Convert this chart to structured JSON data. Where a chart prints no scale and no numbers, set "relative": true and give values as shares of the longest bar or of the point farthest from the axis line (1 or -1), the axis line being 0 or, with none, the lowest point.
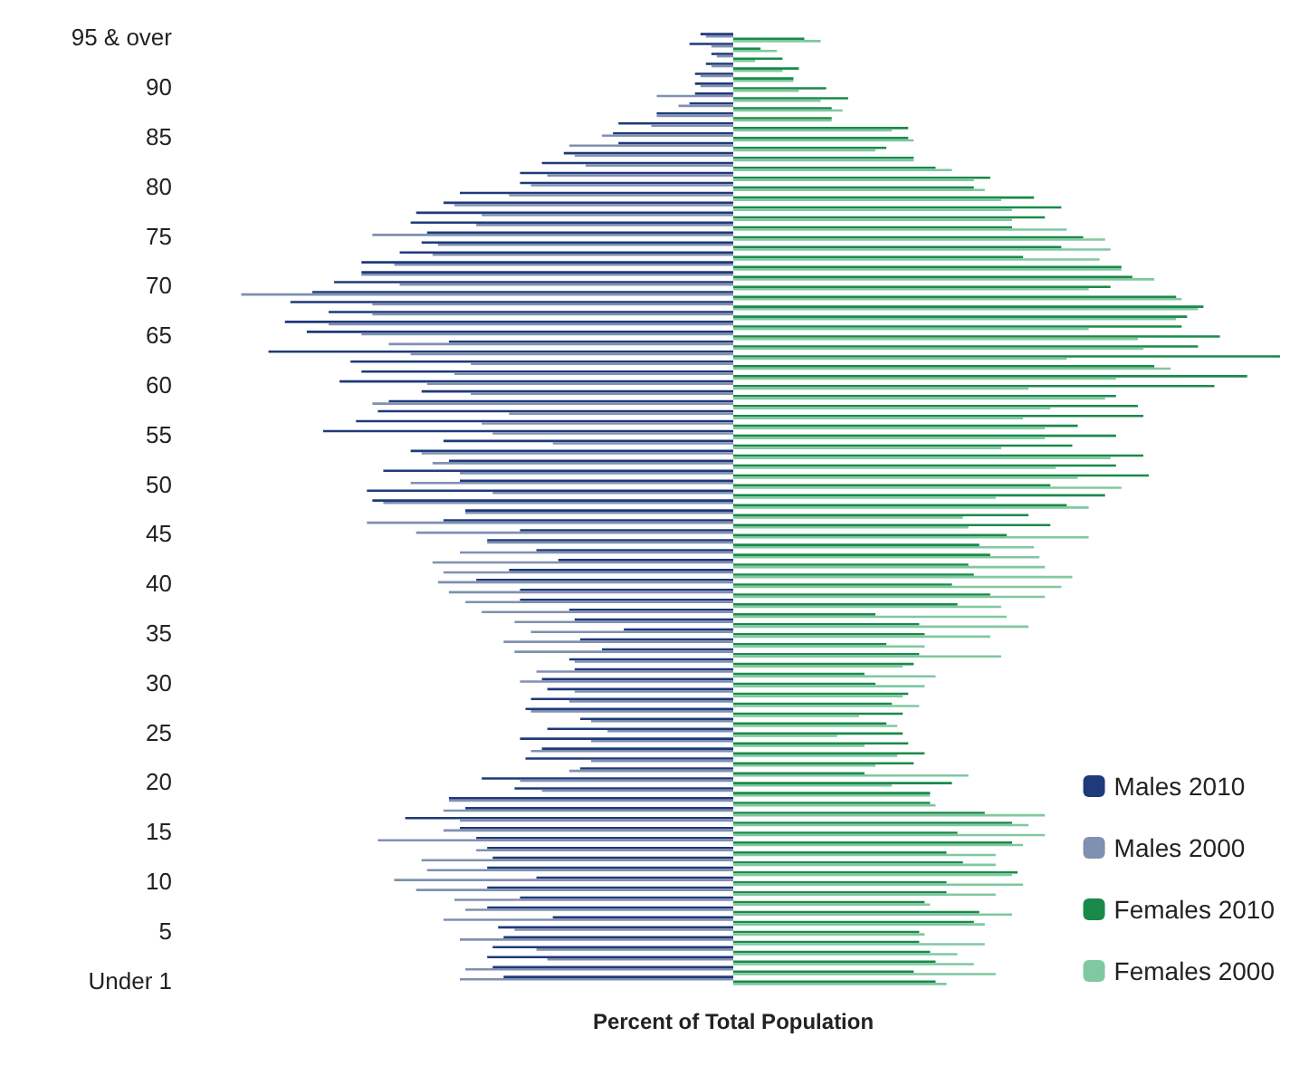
{
  "chart_data": {
    "type": "bar",
    "orientation": "horizontal",
    "relative": true,
    "xlabel": "Percent of Total Population",
    "legend": "bottom right",
    "grid": false,
    "categories": [
      "95 & over",
      null,
      null,
      null,
      null,
      "90",
      null,
      null,
      null,
      null,
      "85",
      null,
      null,
      null,
      null,
      "80",
      null,
      null,
      null,
      null,
      "75",
      null,
      null,
      null,
      null,
      "70",
      null,
      null,
      null,
      null,
      "65",
      null,
      null,
      null,
      null,
      "60",
      null,
      null,
      null,
      null,
      "55",
      null,
      null,
      null,
      null,
      "50",
      null,
      null,
      null,
      null,
      "45",
      null,
      null,
      null,
      null,
      "40",
      null,
      null,
      null,
      null,
      "35",
      null,
      null,
      null,
      null,
      "30",
      null,
      null,
      null,
      null,
      "25",
      null,
      null,
      null,
      null,
      "20",
      null,
      null,
      null,
      null,
      "15",
      null,
      null,
      null,
      null,
      "10",
      null,
      null,
      null,
      null,
      "5",
      null,
      null,
      null,
      null,
      "Under 1"
    ],
    "series": [
      {
        "name": "Males 2010",
        "color": "#1f3a7a",
        "values": [
          -0.06,
          -0.08,
          -0.04,
          -0.05,
          -0.07,
          -0.07,
          -0.07,
          -0.08,
          -0.14,
          -0.21,
          -0.22,
          -0.21,
          -0.31,
          -0.35,
          -0.39,
          -0.39,
          -0.5,
          -0.53,
          -0.58,
          -0.59,
          -0.56,
          -0.57,
          -0.61,
          -0.68,
          -0.68,
          -0.73,
          -0.77,
          -0.81,
          -0.74,
          -0.82,
          -0.78,
          -0.52,
          -0.85,
          -0.7,
          -0.68,
          -0.72,
          -0.57,
          -0.63,
          -0.65,
          -0.69,
          -0.75,
          -0.53,
          -0.59,
          -0.52,
          -0.64,
          -0.5,
          -0.67,
          -0.66,
          -0.49,
          -0.53,
          -0.39,
          -0.45,
          -0.36,
          -0.32,
          -0.41,
          -0.47,
          -0.39,
          -0.39,
          -0.3,
          -0.29,
          -0.2,
          -0.28,
          -0.24,
          -0.3,
          -0.29,
          -0.35,
          -0.34,
          -0.37,
          -0.38,
          -0.28,
          -0.34,
          -0.39,
          -0.35,
          -0.38,
          -0.28,
          -0.46,
          -0.4,
          -0.52,
          -0.49,
          -0.6,
          -0.5,
          -0.47,
          -0.45,
          -0.44,
          -0.45,
          -0.36,
          -0.45,
          -0.39,
          -0.45,
          -0.33,
          -0.43,
          -0.42,
          -0.44,
          -0.45,
          -0.44,
          -0.42
        ]
      },
      {
        "name": "Males 2000",
        "color": "#8090b0",
        "values": [
          -0.05,
          -0.04,
          -0.03,
          -0.04,
          -0.06,
          -0.06,
          -0.14,
          -0.1,
          -0.14,
          -0.15,
          -0.24,
          -0.3,
          -0.29,
          -0.27,
          -0.34,
          -0.37,
          -0.41,
          -0.51,
          -0.46,
          -0.47,
          -0.66,
          -0.54,
          -0.55,
          -0.62,
          -0.68,
          -0.61,
          -0.9,
          -0.66,
          -0.66,
          -0.74,
          -0.68,
          -0.63,
          -0.59,
          -0.48,
          -0.51,
          -0.56,
          -0.48,
          -0.66,
          -0.41,
          -0.46,
          -0.44,
          -0.33,
          -0.57,
          -0.55,
          -0.5,
          -0.59,
          -0.44,
          -0.64,
          -0.49,
          -0.67,
          -0.58,
          -0.45,
          -0.5,
          -0.55,
          -0.53,
          -0.54,
          -0.52,
          -0.49,
          -0.46,
          -0.4,
          -0.37,
          -0.42,
          -0.4,
          -0.29,
          -0.36,
          -0.39,
          -0.29,
          -0.3,
          -0.37,
          -0.26,
          -0.23,
          -0.26,
          -0.37,
          -0.26,
          -0.3,
          -0.39,
          -0.35,
          -0.52,
          -0.53,
          -0.5,
          -0.53,
          -0.65,
          -0.47,
          -0.57,
          -0.56,
          -0.62,
          -0.58,
          -0.51,
          -0.49,
          -0.53,
          -0.4,
          -0.5,
          -0.36,
          -0.34,
          -0.49,
          -0.5
        ]
      },
      {
        "name": "Females 2010",
        "color": "#1a8a4a",
        "values": [
          0.13,
          0.05,
          0.09,
          0.12,
          0.11,
          0.17,
          0.21,
          0.18,
          0.18,
          0.32,
          0.32,
          0.28,
          0.33,
          0.37,
          0.47,
          0.44,
          0.55,
          0.6,
          0.57,
          0.51,
          0.64,
          0.6,
          0.53,
          0.71,
          0.73,
          0.69,
          0.81,
          0.86,
          0.83,
          0.82,
          0.89,
          0.85,
          1,
          0.77,
          0.94,
          0.88,
          0.7,
          0.74,
          0.75,
          0.63,
          0.7,
          0.62,
          0.75,
          0.7,
          0.76,
          0.58,
          0.68,
          0.61,
          0.54,
          0.58,
          0.5,
          0.45,
          0.47,
          0.43,
          0.44,
          0.4,
          0.47,
          0.41,
          0.26,
          0.34,
          0.35,
          0.28,
          0.34,
          0.33,
          0.24,
          0.26,
          0.32,
          0.29,
          0.31,
          0.28,
          0.31,
          0.32,
          0.35,
          0.33,
          0.24,
          0.4,
          0.36,
          0.36,
          0.46,
          0.51,
          0.41,
          0.51,
          0.39,
          0.42,
          0.52,
          0.39,
          0.39,
          0.35,
          0.45,
          0.44,
          0.34,
          0.34,
          0.36,
          0.37,
          0.33,
          0.37
        ]
      },
      {
        "name": "Females 2000",
        "color": "#80c8a0",
        "values": [
          0.16,
          0.08,
          0.04,
          0.09,
          0.11,
          0.12,
          0.16,
          0.2,
          0.18,
          0.29,
          0.33,
          0.26,
          0.33,
          0.4,
          0.44,
          0.46,
          0.49,
          0.51,
          0.51,
          0.61,
          0.68,
          0.69,
          0.67,
          0.71,
          0.77,
          0.65,
          0.82,
          0.85,
          0.81,
          0.65,
          0.74,
          0.75,
          0.61,
          0.8,
          0.7,
          0.54,
          0.68,
          0.58,
          0.53,
          0.57,
          0.57,
          0.49,
          0.69,
          0.59,
          0.63,
          0.71,
          0.48,
          0.65,
          0.42,
          0.43,
          0.65,
          0.55,
          0.56,
          0.57,
          0.62,
          0.6,
          0.57,
          0.49,
          0.5,
          0.54,
          0.47,
          0.35,
          0.49,
          0.31,
          0.37,
          0.35,
          0.31,
          0.34,
          0.23,
          0.3,
          0.19,
          0.24,
          0.3,
          0.26,
          0.43,
          0.29,
          0.36,
          0.37,
          0.57,
          0.54,
          0.57,
          0.53,
          0.48,
          0.48,
          0.51,
          0.53,
          0.48,
          0.36,
          0.51,
          0.46,
          0.35,
          0.46,
          0.41,
          0.44,
          0.48,
          0.39
        ]
      }
    ]
  }
}
